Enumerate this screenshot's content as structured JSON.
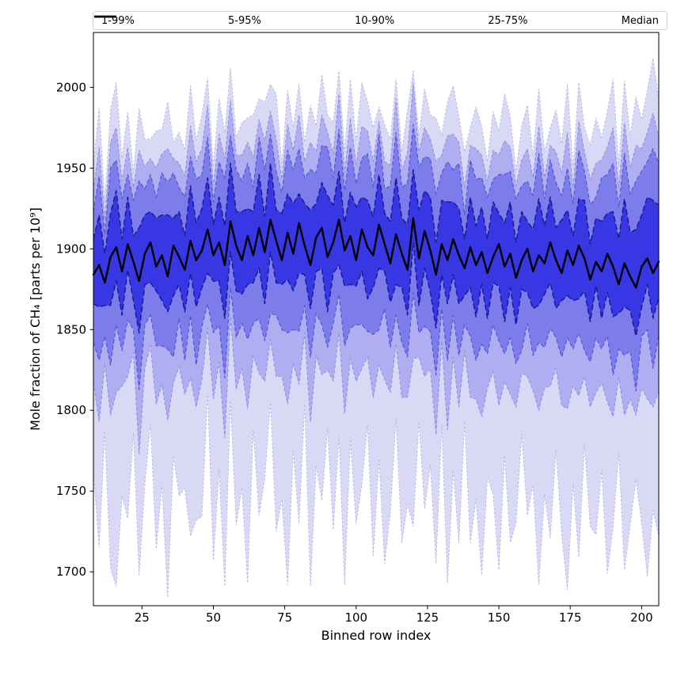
{
  "figure": {
    "background": "#ffffff",
    "border_color": "#000000"
  },
  "chart_data": {
    "type": "area",
    "subtype": "percentile-fan-chart",
    "title": "",
    "xlabel": "Binned row index",
    "ylabel": "Mole fraction of CH₄ [parts per 10⁹]",
    "xlim": [
      8,
      206
    ],
    "ylim": [
      1679,
      2034
    ],
    "xticks": [
      25,
      50,
      75,
      100,
      125,
      150,
      175,
      200
    ],
    "yticks": [
      1700,
      1750,
      1800,
      1850,
      1900,
      1950,
      2000
    ],
    "grid": false,
    "legend_position": "top",
    "legend": {
      "entries": [
        {
          "label": "1-99%",
          "color": "#c2c2ef",
          "dash": "3 3",
          "width": 1.1
        },
        {
          "label": "5-95%",
          "color": "#9d9dea",
          "dash": "5 3",
          "width": 1.3
        },
        {
          "label": "10-90%",
          "color": "#8181ee",
          "dash": "6 3",
          "width": 1.6
        },
        {
          "label": "25-75%",
          "color": "#5454e2",
          "dash": "7 4",
          "width": 2.1
        },
        {
          "label": "Median",
          "color": "#000000",
          "dash": "",
          "width": 2.8
        }
      ]
    },
    "x": [
      8,
      10,
      12,
      14,
      16,
      18,
      20,
      22,
      24,
      26,
      28,
      30,
      32,
      34,
      36,
      38,
      40,
      42,
      44,
      46,
      48,
      50,
      52,
      54,
      56,
      58,
      60,
      62,
      64,
      66,
      68,
      70,
      72,
      74,
      76,
      78,
      80,
      82,
      84,
      86,
      88,
      90,
      92,
      94,
      96,
      98,
      100,
      102,
      104,
      106,
      108,
      110,
      112,
      114,
      116,
      118,
      120,
      122,
      124,
      126,
      128,
      130,
      132,
      134,
      136,
      138,
      140,
      142,
      144,
      146,
      148,
      150,
      152,
      154,
      156,
      158,
      160,
      162,
      164,
      166,
      168,
      170,
      172,
      174,
      176,
      178,
      180,
      182,
      184,
      186,
      188,
      190,
      192,
      194,
      196,
      198,
      200,
      202,
      204,
      206
    ],
    "bands": [
      {
        "label": "1-99%",
        "lower_percentile": 1,
        "upper_percentile": 99,
        "fill": "#d9d9f6",
        "edge": "#b2b2e6",
        "dash": "2.5 2.5",
        "edge_width": 0.9,
        "lower": [
          1762,
          1715,
          1787,
          1702,
          1691,
          1747,
          1733,
          1786,
          1698,
          1754,
          1792,
          1714,
          1754,
          1684,
          1772,
          1747,
          1752,
          1722,
          1732,
          1734,
          1811,
          1707,
          1764,
          1691,
          1806,
          1729,
          1752,
          1693,
          1788,
          1735,
          1758,
          1806,
          1725,
          1745,
          1692,
          1775,
          1730,
          1804,
          1691,
          1766,
          1744,
          1789,
          1726,
          1784,
          1692,
          1782,
          1730,
          1754,
          1791,
          1710,
          1770,
          1705,
          1737,
          1795,
          1718,
          1742,
          1728,
          1793,
          1739,
          1766,
          1705,
          1791,
          1693,
          1763,
          1718,
          1793,
          1718,
          1745,
          1698,
          1758,
          1748,
          1701,
          1772,
          1718,
          1730,
          1785,
          1735,
          1754,
          1692,
          1748,
          1721,
          1776,
          1723,
          1689,
          1755,
          1709,
          1779,
          1728,
          1723,
          1763,
          1699,
          1728,
          1774,
          1701,
          1729,
          1757,
          1730,
          1697,
          1738,
          1722
        ],
        "upper": [
          1952,
          1987,
          1929,
          1986,
          2003,
          1956,
          1985,
          1947,
          1987,
          1968,
          1968,
          1973,
          1974,
          1991,
          1966,
          1972,
          1961,
          2001,
          1967,
          1983,
          2006,
          1951,
          1993,
          1972,
          2012,
          1969,
          1978,
          1981,
          1983,
          1993,
          1991,
          2002,
          1996,
          1952,
          1998,
          1975,
          2002,
          1966,
          1989,
          1976,
          2008,
          1983,
          1978,
          2010,
          1960,
          2005,
          1967,
          2003,
          1991,
          1975,
          1988,
          1977,
          1968,
          2005,
          1960,
          1986,
          2010,
          1970,
          1999,
          1983,
          1981,
          1971,
          1991,
          2001,
          1982,
          1960,
          1975,
          1988,
          1976,
          1954,
          1985,
          1973,
          1996,
          1982,
          1948,
          1976,
          1989,
          1957,
          1999,
          1960,
          1975,
          1986,
          1965,
          2002,
          1950,
          2003,
          1975,
          1964,
          1981,
          1969,
          1985,
          2005,
          1952,
          2004,
          1970,
          1994,
          1980,
          1998,
          2018,
          1993
        ]
      },
      {
        "label": "5-95%",
        "lower_percentile": 5,
        "upper_percentile": 95,
        "fill": "#aeaef0",
        "edge": "#8d8de0",
        "dash": "4 2.5",
        "edge_width": 1.0,
        "lower": [
          1817,
          1793,
          1829,
          1797,
          1811,
          1815,
          1821,
          1836,
          1773,
          1826,
          1840,
          1804,
          1816,
          1794,
          1817,
          1827,
          1810,
          1820,
          1802,
          1819,
          1851,
          1807,
          1830,
          1783,
          1858,
          1813,
          1826,
          1801,
          1834,
          1823,
          1818,
          1844,
          1821,
          1821,
          1804,
          1829,
          1816,
          1848,
          1793,
          1834,
          1822,
          1825,
          1818,
          1848,
          1798,
          1832,
          1818,
          1826,
          1833,
          1808,
          1828,
          1819,
          1811,
          1841,
          1808,
          1808,
          1832,
          1833,
          1821,
          1826,
          1785,
          1843,
          1788,
          1833,
          1802,
          1837,
          1808,
          1807,
          1796,
          1814,
          1824,
          1803,
          1818,
          1810,
          1802,
          1823,
          1821,
          1812,
          1800,
          1814,
          1815,
          1826,
          1803,
          1801,
          1815,
          1809,
          1821,
          1802,
          1811,
          1817,
          1805,
          1796,
          1820,
          1797,
          1807,
          1797,
          1814,
          1807,
          1802,
          1812
        ],
        "upper": [
          1936,
          1963,
          1918,
          1966,
          1975,
          1942,
          1963,
          1938,
          1961,
          1951,
          1956,
          1950,
          1959,
          1962,
          1956,
          1953,
          1945,
          1976,
          1954,
          1962,
          1989,
          1939,
          1971,
          1956,
          1992,
          1958,
          1958,
          1966,
          1957,
          1980,
          1967,
          1985,
          1968,
          1943,
          1977,
          1961,
          1983,
          1954,
          1966,
          1960,
          1983,
          1972,
          1959,
          1996,
          1947,
          1981,
          1952,
          1976,
          1973,
          1954,
          1979,
          1954,
          1952,
          1993,
          1948,
          1960,
          2002,
          1960,
          1975,
          1968,
          1954,
          1958,
          1970,
          1971,
          1966,
          1938,
          1964,
          1962,
          1958,
          1942,
          1961,
          1958,
          1967,
          1963,
          1939,
          1955,
          1962,
          1944,
          1976,
          1944,
          1964,
          1960,
          1947,
          1972,
          1938,
          1979,
          1960,
          1943,
          1953,
          1955,
          1963,
          1975,
          1938,
          1978,
          1950,
          1964,
          1962,
          1972,
          1984,
          1969
        ]
      },
      {
        "label": "10-90%",
        "lower_percentile": 10,
        "upper_percentile": 90,
        "fill": "#7c7cea",
        "edge": "#5555d5",
        "dash": "5 3",
        "edge_width": 1.2,
        "lower": [
          1842,
          1831,
          1846,
          1828,
          1853,
          1837,
          1856,
          1850,
          1813,
          1853,
          1859,
          1840,
          1840,
          1838,
          1833,
          1857,
          1831,
          1859,
          1828,
          1852,
          1866,
          1848,
          1853,
          1820,
          1876,
          1845,
          1854,
          1844,
          1854,
          1857,
          1843,
          1860,
          1859,
          1850,
          1848,
          1850,
          1849,
          1865,
          1833,
          1860,
          1853,
          1839,
          1854,
          1872,
          1840,
          1851,
          1853,
          1853,
          1849,
          1847,
          1850,
          1863,
          1839,
          1859,
          1842,
          1833,
          1873,
          1848,
          1852,
          1849,
          1822,
          1863,
          1831,
          1859,
          1834,
          1853,
          1846,
          1831,
          1841,
          1835,
          1853,
          1843,
          1835,
          1845,
          1829,
          1837,
          1854,
          1834,
          1842,
          1839,
          1851,
          1845,
          1833,
          1845,
          1838,
          1848,
          1837,
          1830,
          1845,
          1838,
          1846,
          1822,
          1838,
          1834,
          1837,
          1812,
          1846,
          1850,
          1826,
          1847
        ],
        "upper": [
          1923,
          1945,
          1909,
          1950,
          1955,
          1931,
          1946,
          1930,
          1942,
          1937,
          1946,
          1932,
          1947,
          1941,
          1947,
          1938,
          1932,
          1957,
          1943,
          1946,
          1969,
          1929,
          1954,
          1944,
          1970,
          1949,
          1942,
          1953,
          1938,
          1969,
          1949,
          1971,
          1948,
          1935,
          1961,
          1949,
          1962,
          1944,
          1949,
          1947,
          1964,
          1963,
          1944,
          1974,
          1936,
          1963,
          1940,
          1956,
          1959,
          1938,
          1971,
          1937,
          1939,
          1972,
          1938,
          1941,
          1977,
          1951,
          1957,
          1956,
          1934,
          1947,
          1954,
          1949,
          1953,
          1921,
          1955,
          1943,
          1944,
          1932,
          1943,
          1946,
          1946,
          1948,
          1931,
          1939,
          1942,
          1933,
          1959,
          1931,
          1955,
          1941,
          1933,
          1950,
          1928,
          1961,
          1948,
          1927,
          1932,
          1944,
          1946,
          1953,
          1926,
          1959,
          1934,
          1942,
          1948,
          1954,
          1962,
          1953
        ]
      },
      {
        "label": "25-75%",
        "lower_percentile": 25,
        "upper_percentile": 75,
        "fill": "#3737e3",
        "edge": "#1b1b96",
        "dash": "7 3.5",
        "edge_width": 1.5,
        "lower": [
          1866,
          1864,
          1865,
          1865,
          1880,
          1859,
          1887,
          1868,
          1848,
          1878,
          1879,
          1874,
          1868,
          1861,
          1871,
          1878,
          1861,
          1885,
          1864,
          1876,
          1885,
          1880,
          1880,
          1857,
          1898,
          1874,
          1872,
          1878,
          1879,
          1888,
          1866,
          1898,
          1879,
          1878,
          1881,
          1874,
          1885,
          1884,
          1863,
          1886,
          1888,
          1861,
          1885,
          1890,
          1877,
          1878,
          1877,
          1886,
          1869,
          1876,
          1888,
          1886,
          1867,
          1878,
          1876,
          1859,
          1904,
          1865,
          1888,
          1873,
          1851,
          1884,
          1866,
          1884,
          1866,
          1871,
          1876,
          1858,
          1878,
          1857,
          1879,
          1877,
          1855,
          1876,
          1853,
          1875,
          1873,
          1863,
          1865,
          1872,
          1879,
          1863,
          1868,
          1871,
          1868,
          1869,
          1874,
          1855,
          1877,
          1857,
          1873,
          1858,
          1860,
          1864,
          1862,
          1846,
          1864,
          1878,
          1857,
          1870
        ],
        "upper": [
          1906,
          1921,
          1897,
          1922,
          1936,
          1906,
          1932,
          1908,
          1913,
          1921,
          1923,
          1919,
          1921,
          1921,
          1919,
          1923,
          1908,
          1939,
          1916,
          1925,
          1944,
          1915,
          1932,
          1914,
          1953,
          1923,
          1923,
          1925,
          1923,
          1946,
          1920,
          1953,
          1924,
          1922,
          1934,
          1928,
          1934,
          1928,
          1924,
          1928,
          1941,
          1933,
          1927,
          1948,
          1916,
          1935,
          1926,
          1932,
          1930,
          1920,
          1946,
          1922,
          1917,
          1944,
          1919,
          1915,
          1949,
          1924,
          1936,
          1932,
          1904,
          1930,
          1929,
          1929,
          1925,
          1906,
          1932,
          1914,
          1926,
          1906,
          1929,
          1922,
          1916,
          1929,
          1904,
          1923,
          1917,
          1912,
          1931,
          1914,
          1932,
          1913,
          1918,
          1924,
          1908,
          1931,
          1930,
          1903,
          1919,
          1917,
          1922,
          1923,
          1906,
          1931,
          1910,
          1912,
          1921,
          1932,
          1930,
          1927
        ]
      }
    ],
    "median": {
      "label": "Median",
      "color": "#000000",
      "width": 2.4,
      "values": [
        1884,
        1890,
        1879,
        1895,
        1901,
        1886,
        1903,
        1892,
        1880,
        1897,
        1904,
        1889,
        1896,
        1883,
        1902,
        1895,
        1887,
        1905,
        1893,
        1899,
        1912,
        1896,
        1904,
        1890,
        1917,
        1902,
        1893,
        1908,
        1896,
        1913,
        1898,
        1918,
        1905,
        1893,
        1910,
        1897,
        1916,
        1902,
        1890,
        1907,
        1913,
        1895,
        1904,
        1918,
        1899,
        1908,
        1893,
        1912,
        1901,
        1896,
        1915,
        1903,
        1891,
        1909,
        1897,
        1887,
        1919,
        1894,
        1911,
        1899,
        1884,
        1903,
        1893,
        1906,
        1896,
        1888,
        1901,
        1890,
        1898,
        1885,
        1895,
        1903,
        1889,
        1897,
        1882,
        1893,
        1900,
        1886,
        1896,
        1891,
        1904,
        1893,
        1885,
        1899,
        1890,
        1902,
        1894,
        1881,
        1892,
        1886,
        1897,
        1889,
        1878,
        1891,
        1883,
        1876,
        1889,
        1894,
        1885,
        1892
      ]
    }
  }
}
